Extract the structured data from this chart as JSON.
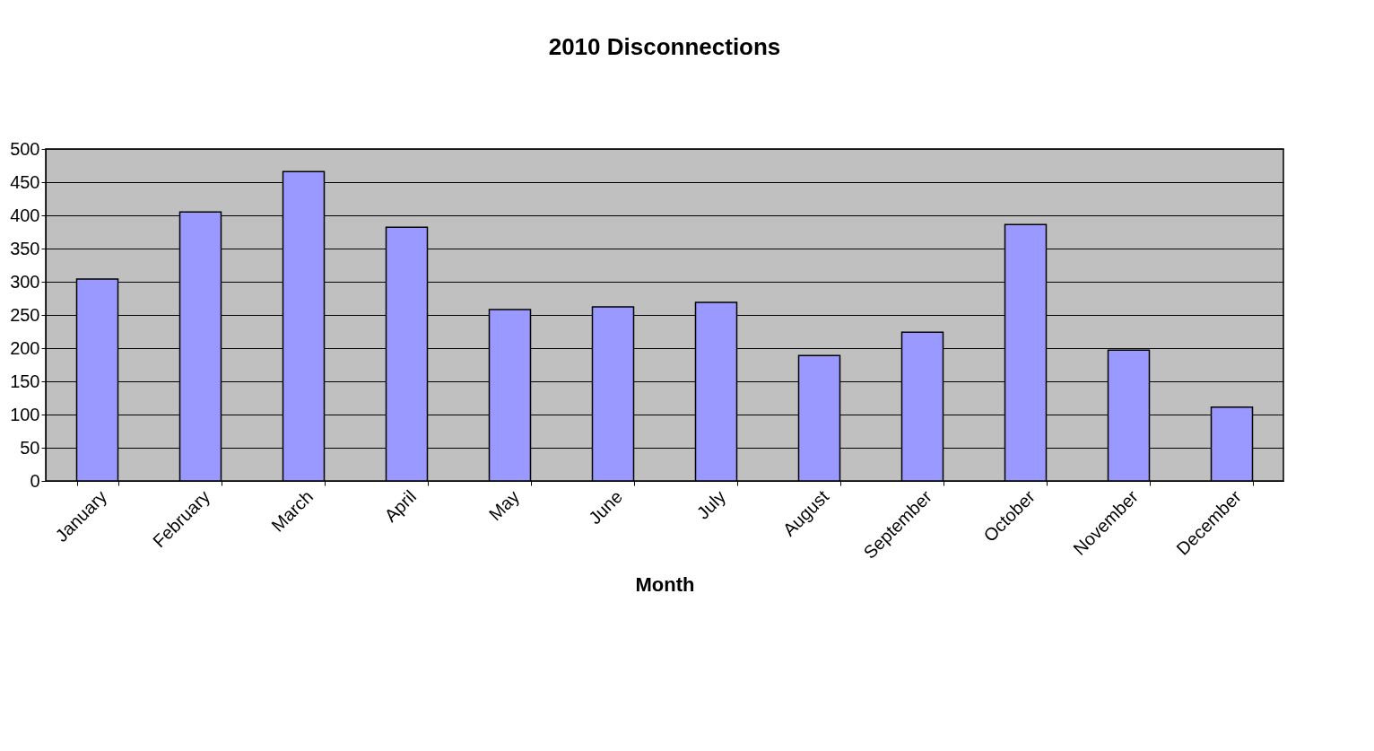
{
  "chart_data": {
    "type": "bar",
    "title": "2010 Disconnections",
    "xlabel": "Month",
    "categories": [
      "January",
      "February",
      "March",
      "April",
      "May",
      "June",
      "July",
      "August",
      "September",
      "October",
      "November",
      "December"
    ],
    "values": [
      304,
      405,
      466,
      382,
      258,
      262,
      269,
      189,
      224,
      386,
      197,
      111
    ],
    "color": "#9999ff",
    "ylim": [
      0,
      500
    ],
    "yticks": [
      0,
      50,
      100,
      150,
      200,
      250,
      300,
      350,
      400,
      450,
      500
    ],
    "grid": "y"
  }
}
